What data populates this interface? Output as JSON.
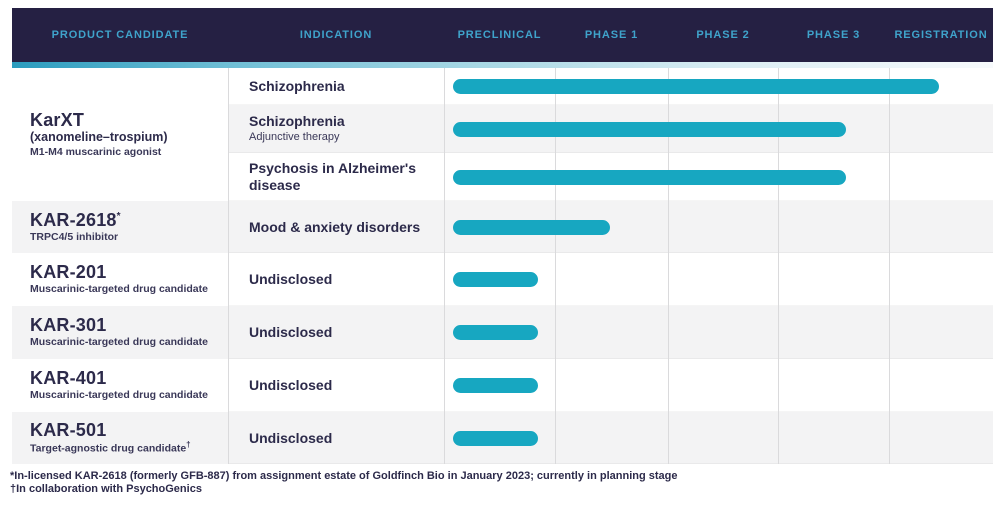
{
  "header": {
    "columns": [
      {
        "label": "PRODUCT CANDIDATE"
      },
      {
        "label": "INDICATION"
      },
      {
        "label": "PRECLINICAL"
      },
      {
        "label": "PHASE 1"
      },
      {
        "label": "PHASE 2"
      },
      {
        "label": "PHASE 3"
      },
      {
        "label": "REGISTRATION"
      }
    ]
  },
  "products": [
    {
      "name": "KarXT",
      "name_sup": "",
      "line2": "(xanomeline–trospium)",
      "line3": "M1-M4 muscarinic agonist",
      "indications": [
        {
          "label": "Schizophrenia",
          "sub": ""
        },
        {
          "label": "Schizophrenia",
          "sub": "Adjunctive therapy"
        },
        {
          "label": "Psychosis in Alzheimer's disease",
          "sub": ""
        }
      ]
    },
    {
      "name": "KAR-2618",
      "name_sup": "*",
      "line2": "TRPC4/5 inhibitor",
      "indications": [
        {
          "label": "Mood & anxiety disorders",
          "sub": ""
        }
      ]
    },
    {
      "name": "KAR-201",
      "name_sup": "",
      "line2": "Muscarinic-targeted drug candidate",
      "indications": [
        {
          "label": "Undisclosed",
          "sub": ""
        }
      ]
    },
    {
      "name": "KAR-301",
      "name_sup": "",
      "line2": "Muscarinic-targeted drug candidate",
      "indications": [
        {
          "label": "Undisclosed",
          "sub": ""
        }
      ]
    },
    {
      "name": "KAR-401",
      "name_sup": "",
      "line2": "Muscarinic-targeted drug candidate",
      "indications": [
        {
          "label": "Undisclosed",
          "sub": ""
        }
      ]
    },
    {
      "name": "KAR-501",
      "name_sup": "",
      "line2": "Target-agnostic drug candidate",
      "line2_sup": "†",
      "indications": [
        {
          "label": "Undisclosed",
          "sub": ""
        }
      ]
    }
  ],
  "chart_data": {
    "type": "bar",
    "variant": "pipeline-gantt",
    "categories": [
      "PRECLINICAL",
      "PHASE 1",
      "PHASE 2",
      "PHASE 3",
      "REGISTRATION"
    ],
    "scale_note": "stage_end in phase-column units: 0 = start of Preclinical, 5 = end of Registration",
    "bar_color": "#17A7C1",
    "rows": [
      {
        "product": "KarXT",
        "indication": "Schizophrenia",
        "stage_end": 4.5
      },
      {
        "product": "KarXT",
        "indication": "Schizophrenia (adjunctive therapy)",
        "stage_end": 3.65
      },
      {
        "product": "KarXT",
        "indication": "Psychosis in Alzheimer's disease",
        "stage_end": 3.65
      },
      {
        "product": "KAR-2618",
        "indication": "Mood & anxiety disorders",
        "stage_end": 1.5
      },
      {
        "product": "KAR-201",
        "indication": "Undisclosed",
        "stage_end": 0.85
      },
      {
        "product": "KAR-301",
        "indication": "Undisclosed",
        "stage_end": 0.85
      },
      {
        "product": "KAR-401",
        "indication": "Undisclosed",
        "stage_end": 0.85
      },
      {
        "product": "KAR-501",
        "indication": "Undisclosed",
        "stage_end": 0.85
      }
    ]
  },
  "footnotes": [
    "*In-licensed KAR-2618 (formerly GFB-887) from assignment estate of Goldfinch Bio in January 2023; currently in planning stage",
    "†In collaboration with PsychoGenics"
  ],
  "colors": {
    "header_bg": "#252043",
    "header_text": "#3FA3CB",
    "bar": "#17A7C1",
    "shaded_row": "#F3F3F4",
    "text": "#2C2A4A",
    "gridline": "#DADADC"
  }
}
